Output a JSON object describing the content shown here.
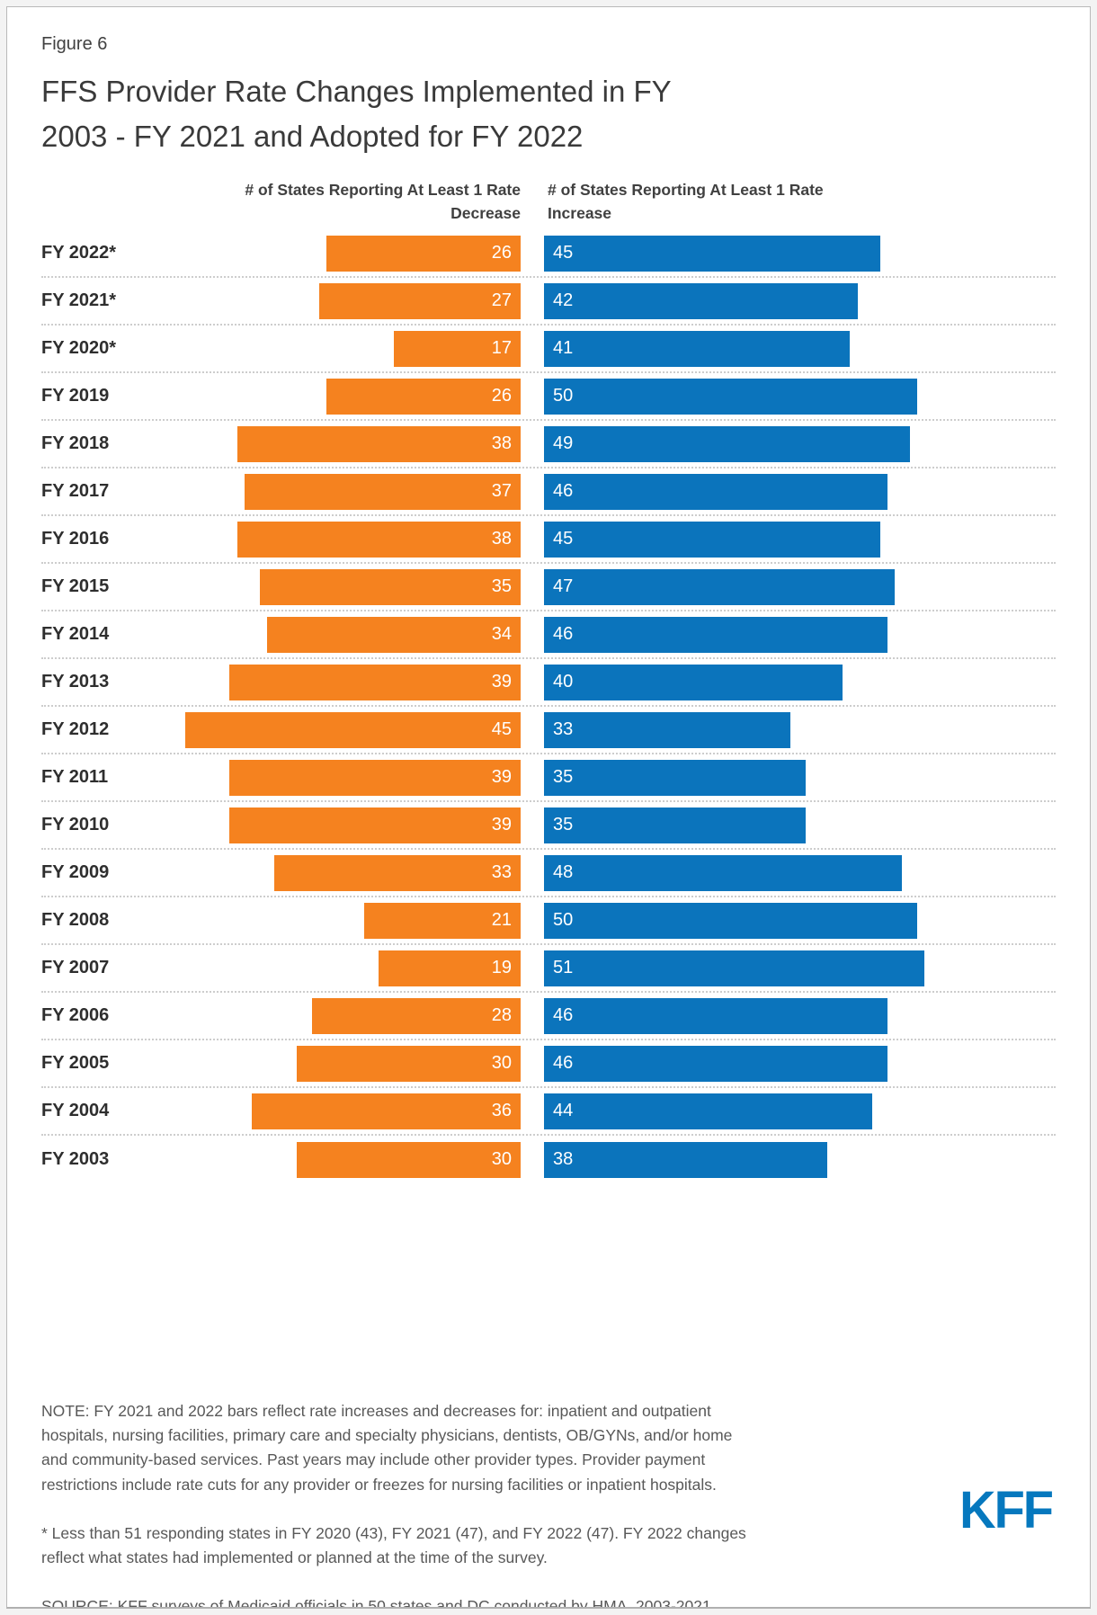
{
  "figure_label": "Figure 6",
  "title": "FFS Provider Rate Changes Implemented in FY\n2003 - FY 2021 and Adopted for FY 2022",
  "columns": {
    "decrease_header": "# of States Reporting At Least 1 Rate\nDecrease",
    "increase_header": "# of States Reporting At Least 1 Rate\nIncrease"
  },
  "chart_data": {
    "type": "bar",
    "orientation": "horizontal",
    "title": "FFS Provider Rate Changes Implemented in FY 2003 - FY 2021 and Adopted for FY 2022",
    "categories": [
      "FY 2022*",
      "FY 2021*",
      "FY 2020*",
      "FY 2019",
      "FY 2018",
      "FY 2017",
      "FY 2016",
      "FY 2015",
      "FY 2014",
      "FY 2013",
      "FY 2012",
      "FY 2011",
      "FY 2010",
      "FY 2009",
      "FY 2008",
      "FY 2007",
      "FY 2006",
      "FY 2005",
      "FY 2004",
      "FY 2003"
    ],
    "series": [
      {
        "name": "# of States Reporting At Least 1 Rate Decrease",
        "color": "#F5821F",
        "values": [
          26,
          27,
          17,
          26,
          38,
          37,
          38,
          35,
          34,
          39,
          45,
          39,
          39,
          33,
          21,
          19,
          28,
          30,
          36,
          30
        ]
      },
      {
        "name": "# of States Reporting At Least 1 Rate Increase",
        "color": "#0B74BC",
        "values": [
          45,
          42,
          41,
          50,
          49,
          46,
          45,
          47,
          46,
          40,
          33,
          35,
          35,
          48,
          50,
          51,
          46,
          46,
          44,
          38
        ]
      }
    ],
    "value_labels": "inside-bar",
    "xlim": [
      0,
      51
    ],
    "grid": false,
    "legend_position": "column-headers"
  },
  "colors": {
    "decrease": "#F5821F",
    "increase": "#0B74BC",
    "logo": "#0678BE"
  },
  "footer": {
    "note": "NOTE: FY 2021 and 2022 bars reflect rate increases and decreases for: inpatient and outpatient\nhospitals, nursing facilities, primary care and specialty physicians, dentists, OB/GYNs, and/or home\nand community-based services. Past years may include other provider types. Provider payment\nrestrictions include rate cuts for any provider or freezes for nursing facilities or inpatient hospitals.",
    "footnote": "* Less than 51 responding states in FY 2020 (43), FY 2021 (47), and FY 2022 (47). FY 2022 changes\nreflect what states had implemented or planned at the time of the survey.",
    "source": "SOURCE: KFF surveys of Medicaid officials in 50 states and DC conducted by HMA, 2003-2021."
  },
  "logo_text": "KFF"
}
